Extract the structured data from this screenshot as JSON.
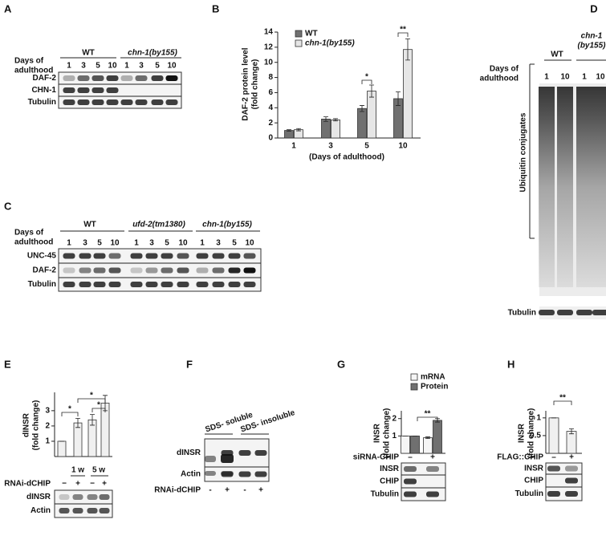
{
  "blots": {
    "A": {
      "label": "A",
      "groups": [
        "WT",
        "chn-1(by155)"
      ],
      "days_label": [
        "Days of",
        "adulthood"
      ],
      "lanes": [
        "1",
        "3",
        "5",
        "10",
        "1",
        "3",
        "5",
        "10"
      ],
      "rows": [
        "DAF-2",
        "CHN-1",
        "Tubulin"
      ]
    },
    "C": {
      "label": "C",
      "groups": [
        "WT",
        "ufd-2(tm1380)",
        "chn-1(by155)"
      ],
      "days_label": [
        "Days of",
        "adulthood"
      ],
      "lanes": [
        "1",
        "3",
        "5",
        "10",
        "1",
        "3",
        "5",
        "10",
        "1",
        "3",
        "5",
        "10"
      ],
      "rows": [
        "UNC-45",
        "DAF-2",
        "Tubulin"
      ]
    },
    "D": {
      "label": "D",
      "groups": [
        [
          "WT"
        ],
        [
          "chn-1",
          "(by155)"
        ]
      ],
      "days_label": [
        "Days of",
        "adulthood"
      ],
      "lanes": [
        "1",
        "10",
        "1",
        "10"
      ],
      "bracket_label": "Ubiquitin conjugates",
      "rows": [
        "Tubulin"
      ]
    },
    "E": {
      "groups": [
        "1 w",
        "5 w"
      ],
      "treatment": "RNAi-dCHIP",
      "lanes": [
        "−",
        "+",
        "−",
        "+"
      ],
      "rows": [
        "dINSR",
        "Actin"
      ]
    },
    "F": {
      "label": "F",
      "groups": [
        "SDS- soluble",
        "SDS- insoluble"
      ],
      "treatment": "RNAi-dCHIP",
      "lanes": [
        "-",
        "+",
        "-",
        "+"
      ],
      "rows": [
        "dINSR",
        "Actin"
      ]
    },
    "G": {
      "treatment": "siRNA-CHIP",
      "lanes": [
        "–",
        "+"
      ],
      "rows": [
        "INSR",
        "CHIP",
        "Tubulin"
      ]
    },
    "H": {
      "treatment": "FLAG::CHIP",
      "lanes": [
        "–",
        "+"
      ],
      "rows": [
        "INSR",
        "CHIP",
        "Tubulin"
      ]
    }
  },
  "chart_data": [
    {
      "type": "bar",
      "panel": "B",
      "y_label": [
        "DAF-2 protein level",
        "(fold change)"
      ],
      "x_label": "(Days of adulthood)",
      "categories": [
        "1",
        "3",
        "5",
        "10"
      ],
      "series": [
        {
          "name": "WT",
          "color": "#707070",
          "values": [
            1.0,
            2.5,
            3.9,
            5.2
          ],
          "errors": [
            0.1,
            0.3,
            0.4,
            0.9
          ]
        },
        {
          "name": "chn-1(by155)",
          "color": "#e6e6e6",
          "values": [
            1.1,
            2.4,
            6.2,
            11.7
          ],
          "errors": [
            0.15,
            0.15,
            0.8,
            1.4
          ]
        }
      ],
      "ylim": [
        0,
        14
      ],
      "yticks": [
        0,
        2,
        4,
        6,
        8,
        10,
        12,
        14
      ],
      "annotations": [
        "*",
        "**"
      ]
    },
    {
      "type": "bar",
      "panel": "E",
      "y_label": [
        "dINSR",
        "(fold change)"
      ],
      "categories": [
        null,
        null,
        null,
        null
      ],
      "series": [
        {
          "color": "#f0f0f0",
          "values": [
            1.0,
            2.2,
            2.4,
            3.5
          ],
          "errors": [
            0,
            0.3,
            0.35,
            0.5
          ]
        }
      ],
      "ylim": [
        0,
        4.2
      ],
      "yticks": [
        1,
        2,
        3
      ],
      "annotations": [
        "*",
        "*",
        "*"
      ]
    },
    {
      "type": "bar",
      "panel": "G",
      "y_label": [
        "INSR",
        "(fold change)"
      ],
      "categories": [
        null,
        null
      ],
      "series": [
        {
          "name": "mRNA",
          "color": "#f5f5f5",
          "values": [
            1.0,
            0.9
          ],
          "errors": [
            0,
            0.05
          ]
        },
        {
          "name": "Protein",
          "color": "#707070",
          "values": [
            1.0,
            1.9
          ],
          "errors": [
            0,
            0.1
          ]
        }
      ],
      "ylim": [
        0,
        2.45
      ],
      "yticks": [
        1,
        2
      ],
      "annotations": [
        "**"
      ]
    },
    {
      "type": "bar",
      "panel": "H",
      "y_label": [
        "INSR",
        "(fold change)"
      ],
      "categories": [
        null,
        null
      ],
      "series": [
        {
          "color": "#f0f0f0",
          "values": [
            1.0,
            0.62
          ],
          "errors": [
            0,
            0.07
          ]
        }
      ],
      "ylim": [
        0,
        1.2
      ],
      "yticks": [
        0.5,
        1
      ],
      "annotations": [
        "**"
      ]
    }
  ]
}
